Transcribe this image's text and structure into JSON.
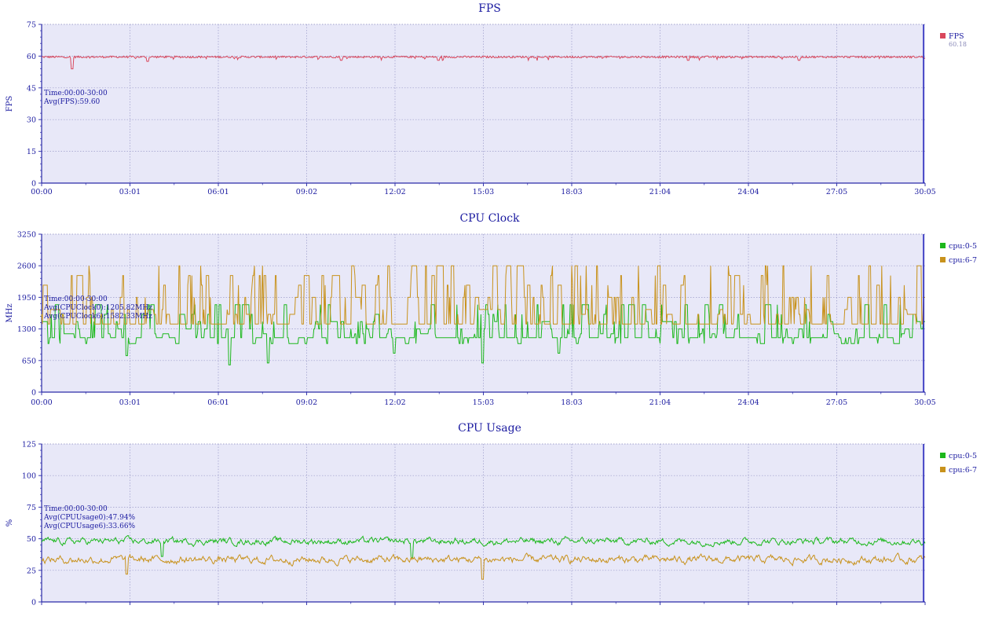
{
  "chart_data": [
    {
      "type": "line",
      "title": "FPS",
      "ylabel": "FPS",
      "xlabel": "",
      "ylim": [
        0,
        75
      ],
      "yticks": [
        "0",
        "15",
        "30",
        "45",
        "60",
        "75"
      ],
      "xticks": [
        "00:00",
        "03:01",
        "06:01",
        "09:02",
        "12:02",
        "15:03",
        "18:03",
        "21:04",
        "24:04",
        "27:05",
        "30:05"
      ],
      "x_range_minutes": [
        0,
        30.08
      ],
      "annotations": [
        "Time:00:00-30:00",
        "Avg(FPS):59.60"
      ],
      "series": [
        {
          "name": "FPS",
          "legend_value": "60.18",
          "color": "#d9475c",
          "base": 59.6,
          "noise": 0.9,
          "dips": [
            [
              1.05,
              54
            ],
            [
              3.6,
              57.5
            ],
            [
              10.2,
              58
            ],
            [
              13.5,
              58
            ],
            [
              22.0,
              58
            ],
            [
              25.8,
              58
            ]
          ],
          "values_sample": [
            60,
            60,
            59.5,
            60,
            59,
            60,
            60,
            59.8,
            60,
            59.5,
            60
          ]
        }
      ]
    },
    {
      "type": "line",
      "title": "CPU Clock",
      "ylabel": "MHz",
      "xlabel": "",
      "ylim": [
        0,
        3250
      ],
      "yticks": [
        "0",
        "650",
        "1300",
        "1950",
        "2600",
        "3250"
      ],
      "xticks": [
        "00:00",
        "03:01",
        "06:01",
        "09:02",
        "12:02",
        "15:03",
        "18:03",
        "21:04",
        "24:04",
        "27:05",
        "30:05"
      ],
      "x_range_minutes": [
        0,
        30.08
      ],
      "annotations": [
        "Time:00:00-30:00",
        "Avg(CPUClock0):1205.82MHz",
        "Avg(CPUClock6):1582.33MHz"
      ],
      "series": [
        {
          "name": "cpu:0-5",
          "color": "#1cb81c",
          "base": 1120,
          "levels": [
            1000,
            1120,
            1200,
            1300,
            1450,
            1600,
            1800
          ],
          "dips": [
            [
              2.9,
              750
            ],
            [
              6.4,
              560
            ],
            [
              7.7,
              600
            ],
            [
              15.0,
              600
            ],
            [
              12.0,
              800
            ],
            [
              17.6,
              800
            ]
          ]
        },
        {
          "name": "cpu:6-7",
          "color": "#c8921c",
          "base": 1400,
          "levels": [
            1400,
            1600,
            1700,
            1950,
            2200,
            2400,
            2600
          ],
          "dips": []
        }
      ]
    },
    {
      "type": "line",
      "title": "CPU Usage",
      "ylabel": "%",
      "xlabel": "",
      "ylim": [
        0,
        125
      ],
      "yticks": [
        "0",
        "25",
        "50",
        "75",
        "100",
        "125"
      ],
      "xticks": [],
      "x_range_minutes": [
        0,
        30.08
      ],
      "annotations": [
        "Time:00:00-30:00",
        "Avg(CPUUsage0):47.94%",
        "Avg(CPUUsage6):33.66%"
      ],
      "series": [
        {
          "name": "cpu:0-5",
          "color": "#1cb81c",
          "base": 48,
          "noise": 3.5,
          "dips": [
            [
              4.1,
              36
            ],
            [
              12.6,
              35
            ]
          ]
        },
        {
          "name": "cpu:6-7",
          "color": "#c8921c",
          "base": 33.5,
          "noise": 4,
          "dips": [
            [
              15.0,
              18
            ],
            [
              2.9,
              22
            ]
          ]
        }
      ]
    }
  ]
}
